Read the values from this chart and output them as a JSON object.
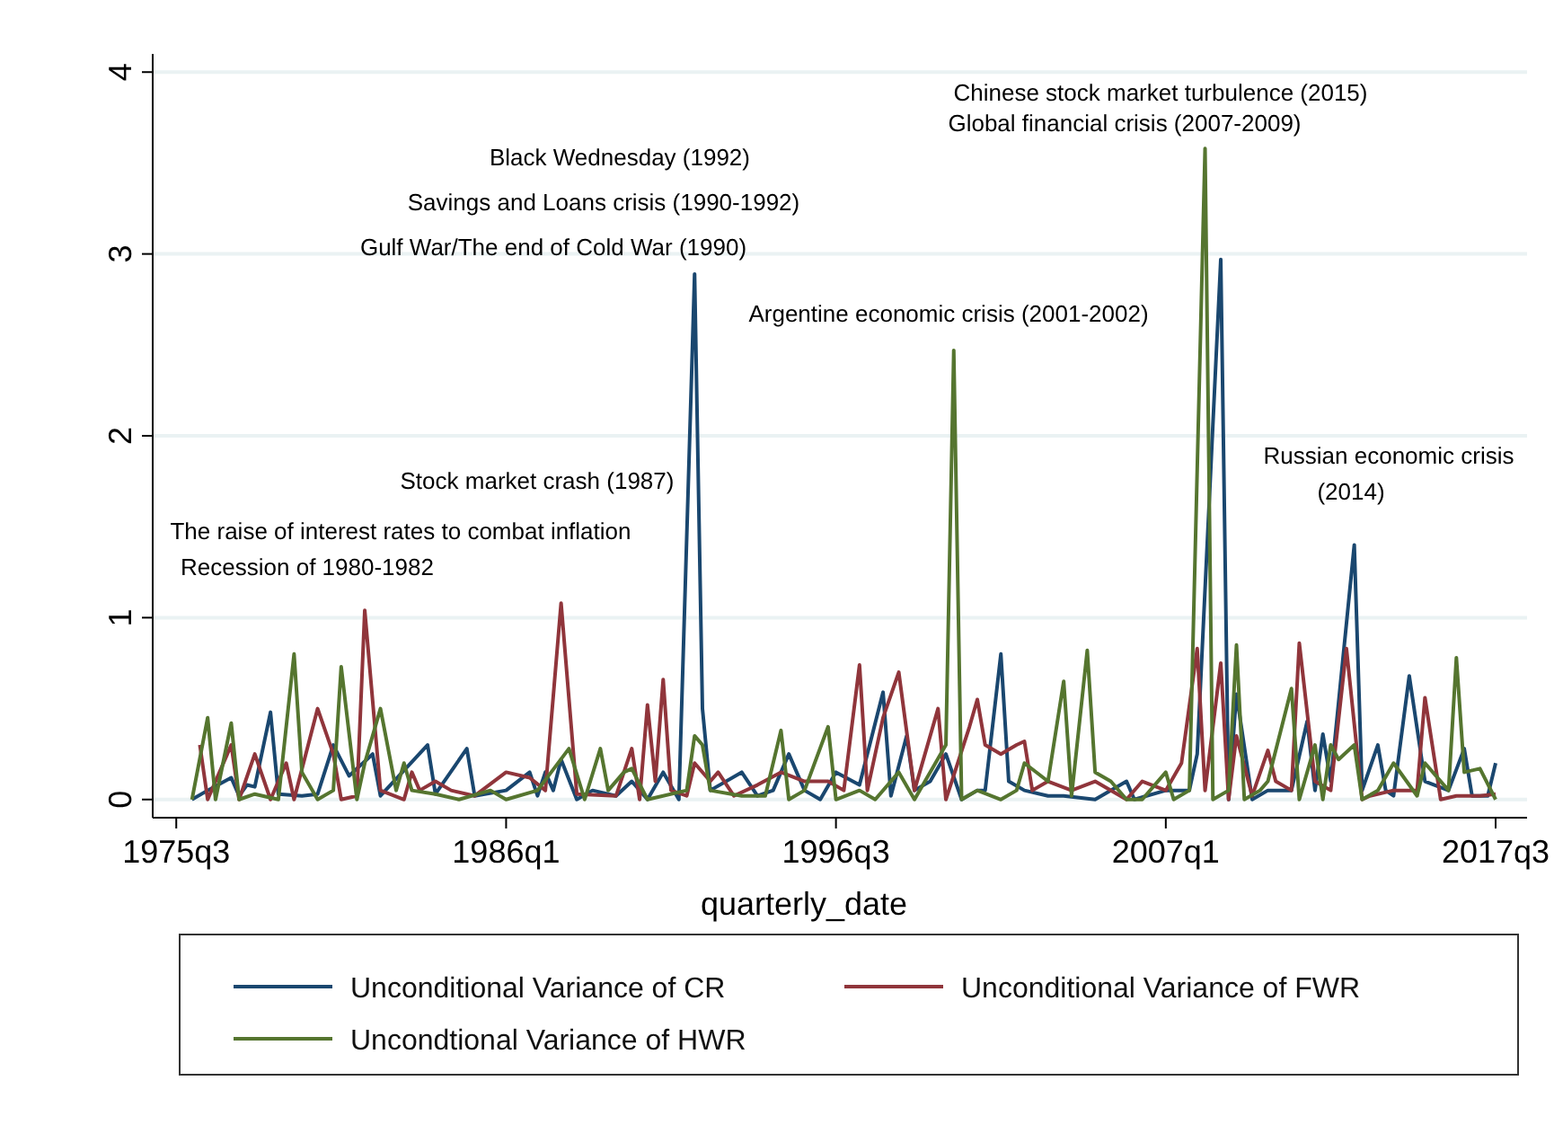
{
  "chart_data": {
    "type": "line",
    "xlabel": "quarterly_date",
    "xlim": [
      "1974-10",
      "2018-07"
    ],
    "xticks": [
      {
        "value": "1975-07",
        "label": "1975q3"
      },
      {
        "value": "1986-01",
        "label": "1986q1"
      },
      {
        "value": "1996-07",
        "label": "1996q3"
      },
      {
        "value": "2007-01",
        "label": "2007q1"
      },
      {
        "value": "2017-07",
        "label": "2017q3"
      }
    ],
    "ylim": [
      -0.1,
      4.1
    ],
    "yticks": [
      0,
      1,
      2,
      3,
      4
    ],
    "grid": "y",
    "legend": "bottom",
    "series": [
      {
        "name": "Unconditional Variance of CR",
        "color": "#1a476f",
        "x": [
          "1976-01",
          "1976-07",
          "1977-04",
          "1977-07",
          "1977-10",
          "1978-01",
          "1978-07",
          "1978-10",
          "1979-07",
          "1980-01",
          "1980-07",
          "1981-01",
          "1981-10",
          "1982-01",
          "1983-07",
          "1983-10",
          "1984-10",
          "1985-01",
          "1986-01",
          "1986-10",
          "1987-01",
          "1987-04",
          "1987-07",
          "1987-10",
          "1988-04",
          "1988-10",
          "1989-07",
          "1990-01",
          "1990-07",
          "1991-01",
          "1991-07",
          "1992-01",
          "1992-04",
          "1992-07",
          "1993-07",
          "1994-01",
          "1994-07",
          "1995-01",
          "1995-07",
          "1996-01",
          "1996-07",
          "1997-04",
          "1998-01",
          "1998-04",
          "1998-10",
          "1999-01",
          "1999-07",
          "2000-01",
          "2000-07",
          "2001-01",
          "2001-04",
          "2001-10",
          "2002-01",
          "2002-07",
          "2003-04",
          "2003-10",
          "2004-10",
          "2005-10",
          "2006-01",
          "2007-01",
          "2007-10",
          "2008-01",
          "2008-10",
          "2009-01",
          "2009-04",
          "2009-10",
          "2010-04",
          "2011-01",
          "2011-07",
          "2011-10",
          "2012-01",
          "2012-04",
          "2013-01",
          "2013-04",
          "2013-10",
          "2014-01",
          "2014-04",
          "2014-10",
          "2015-04",
          "2016-01",
          "2016-07",
          "2016-10",
          "2017-04",
          "2017-07"
        ],
        "values": [
          0,
          0.05,
          0.12,
          0.02,
          0.08,
          0.07,
          0.48,
          0.03,
          0.02,
          0.03,
          0.3,
          0.13,
          0.25,
          0.02,
          0.3,
          0.03,
          0.28,
          0.02,
          0.05,
          0.15,
          0.02,
          0.15,
          0.05,
          0.22,
          0,
          0.05,
          0.02,
          0.1,
          0,
          0.15,
          0,
          2.89,
          0.5,
          0.05,
          0.15,
          0.02,
          0.05,
          0.25,
          0.05,
          0,
          0.15,
          0.08,
          0.59,
          0.02,
          0.35,
          0.05,
          0.1,
          0.25,
          0,
          0.05,
          0.05,
          0.8,
          0.1,
          0.05,
          0.02,
          0.02,
          0,
          0.1,
          0,
          0.05,
          0.05,
          0.25,
          2.97,
          0,
          0.58,
          0,
          0.05,
          0.05,
          0.43,
          0.05,
          0.36,
          0.1,
          1.4,
          0.05,
          0.3,
          0.05,
          0.02,
          0.68,
          0.1,
          0.05,
          0.28,
          0.02,
          0.02,
          0.2
        ]
      },
      {
        "name": "Unconditional Variance of FWR",
        "color": "#90353b",
        "x": [
          "1976-04",
          "1976-07",
          "1977-04",
          "1977-07",
          "1978-01",
          "1978-07",
          "1979-01",
          "1979-04",
          "1980-01",
          "1980-07",
          "1980-10",
          "1981-04",
          "1981-07",
          "1982-01",
          "1982-10",
          "1983-01",
          "1983-04",
          "1983-10",
          "1984-04",
          "1985-01",
          "1986-01",
          "1986-10",
          "1987-04",
          "1987-10",
          "1988-04",
          "1989-07",
          "1990-01",
          "1990-04",
          "1990-07",
          "1990-10",
          "1991-01",
          "1991-04",
          "1991-10",
          "1992-01",
          "1992-07",
          "1992-10",
          "1993-04",
          "1994-01",
          "1994-10",
          "1995-07",
          "1996-04",
          "1996-10",
          "1997-04",
          "1997-07",
          "1998-01",
          "1998-07",
          "1999-01",
          "1999-10",
          "2000-01",
          "2000-10",
          "2001-01",
          "2001-04",
          "2001-10",
          "2002-04",
          "2002-07",
          "2002-10",
          "2003-04",
          "2004-01",
          "2004-10",
          "2005-10",
          "2006-04",
          "2007-01",
          "2007-07",
          "2008-01",
          "2008-04",
          "2008-10",
          "2009-01",
          "2009-04",
          "2009-10",
          "2010-04",
          "2010-07",
          "2011-01",
          "2011-04",
          "2011-10",
          "2012-04",
          "2012-10",
          "2013-04",
          "2013-07",
          "2014-04",
          "2015-01",
          "2015-04",
          "2015-10",
          "2016-04",
          "2017-01",
          "2017-07"
        ],
        "values": [
          0.3,
          0,
          0.3,
          0,
          0.25,
          0,
          0.2,
          0,
          0.5,
          0.25,
          0,
          0.02,
          1.04,
          0.05,
          0,
          0.15,
          0.05,
          0.1,
          0.05,
          0.02,
          0.15,
          0.12,
          0.05,
          1.08,
          0.03,
          0.02,
          0.28,
          0,
          0.52,
          0.1,
          0.66,
          0.05,
          0.02,
          0.2,
          0.1,
          0.15,
          0.02,
          0.08,
          0.15,
          0.1,
          0.1,
          0.05,
          0.74,
          0.05,
          0.45,
          0.7,
          0.05,
          0.5,
          0,
          0.4,
          0.55,
          0.3,
          0.25,
          0.3,
          0.32,
          0.05,
          0.1,
          0.05,
          0.1,
          0,
          0.1,
          0.05,
          0.2,
          0.83,
          0.05,
          0.75,
          0,
          0.35,
          0.02,
          0.27,
          0.1,
          0.05,
          0.86,
          0.1,
          0.05,
          0.83,
          0,
          0.02,
          0.05,
          0.05,
          0.56,
          0,
          0.02,
          0.02,
          0.03
        ]
      },
      {
        "name": "Uncondtional Variance of HWR",
        "color": "#55752f",
        "x": [
          "1976-01",
          "1976-07",
          "1976-10",
          "1977-04",
          "1977-07",
          "1978-01",
          "1978-10",
          "1979-04",
          "1979-07",
          "1980-01",
          "1980-07",
          "1980-10",
          "1981-04",
          "1981-07",
          "1982-01",
          "1982-07",
          "1982-10",
          "1983-01",
          "1983-10",
          "1984-07",
          "1985-07",
          "1986-01",
          "1987-01",
          "1988-01",
          "1988-07",
          "1989-01",
          "1989-04",
          "1989-10",
          "1990-01",
          "1990-07",
          "1991-10",
          "1992-01",
          "1992-04",
          "1992-07",
          "1993-07",
          "1994-04",
          "1994-10",
          "1995-01",
          "1995-07",
          "1996-04",
          "1996-07",
          "1997-04",
          "1997-10",
          "1998-07",
          "1999-01",
          "2000-01",
          "2000-04",
          "2000-07",
          "2001-01",
          "2001-10",
          "2002-04",
          "2002-07",
          "2003-04",
          "2003-10",
          "2004-01",
          "2004-07",
          "2004-10",
          "2005-04",
          "2005-10",
          "2006-04",
          "2007-01",
          "2007-04",
          "2007-10",
          "2008-04",
          "2008-07",
          "2009-01",
          "2009-04",
          "2009-07",
          "2010-01",
          "2010-04",
          "2011-01",
          "2011-04",
          "2011-10",
          "2012-01",
          "2012-04",
          "2012-07",
          "2013-01",
          "2013-04",
          "2013-10",
          "2014-04",
          "2015-01",
          "2015-04",
          "2016-01",
          "2016-04",
          "2016-07",
          "2017-01",
          "2017-07"
        ],
        "values": [
          0,
          0.45,
          0,
          0.42,
          0,
          0.03,
          0,
          0.8,
          0.15,
          0,
          0.05,
          0.73,
          0,
          0.2,
          0.5,
          0.05,
          0.2,
          0.05,
          0.03,
          0,
          0.05,
          0,
          0.05,
          0.28,
          0,
          0.28,
          0.05,
          0.15,
          0.17,
          0,
          0.05,
          0.35,
          0.3,
          0.05,
          0.02,
          0.02,
          0.38,
          0,
          0.05,
          0.4,
          0,
          0.05,
          0,
          0.15,
          0,
          0.3,
          2.47,
          0,
          0.05,
          0,
          0.05,
          0.2,
          0.1,
          0.65,
          0.02,
          0.82,
          0.15,
          0.1,
          0,
          0,
          0.15,
          0,
          0.05,
          3.58,
          0,
          0.05,
          0.85,
          0,
          0.05,
          0.1,
          0.61,
          0,
          0.3,
          0,
          0.3,
          0.22,
          0.3,
          0,
          0.05,
          0.2,
          0.02,
          0.2,
          0.05,
          0.78,
          0.15,
          0.17,
          0
        ]
      }
    ],
    "annotations": [
      "Chinese stock market turbulence (2015)",
      "Global financial crisis (2007-2009)",
      "Black Wednesday (1992)",
      "Savings and Loans crisis (1990-1992)",
      "Gulf War/The end of Cold War (1990)",
      "Argentine economic crisis (2001-2002)",
      "Russian economic crisis",
      "(2014)",
      "Stock market crash (1987)",
      "The raise of interest rates to combat inflation",
      "Recession of 1980-1982"
    ]
  }
}
